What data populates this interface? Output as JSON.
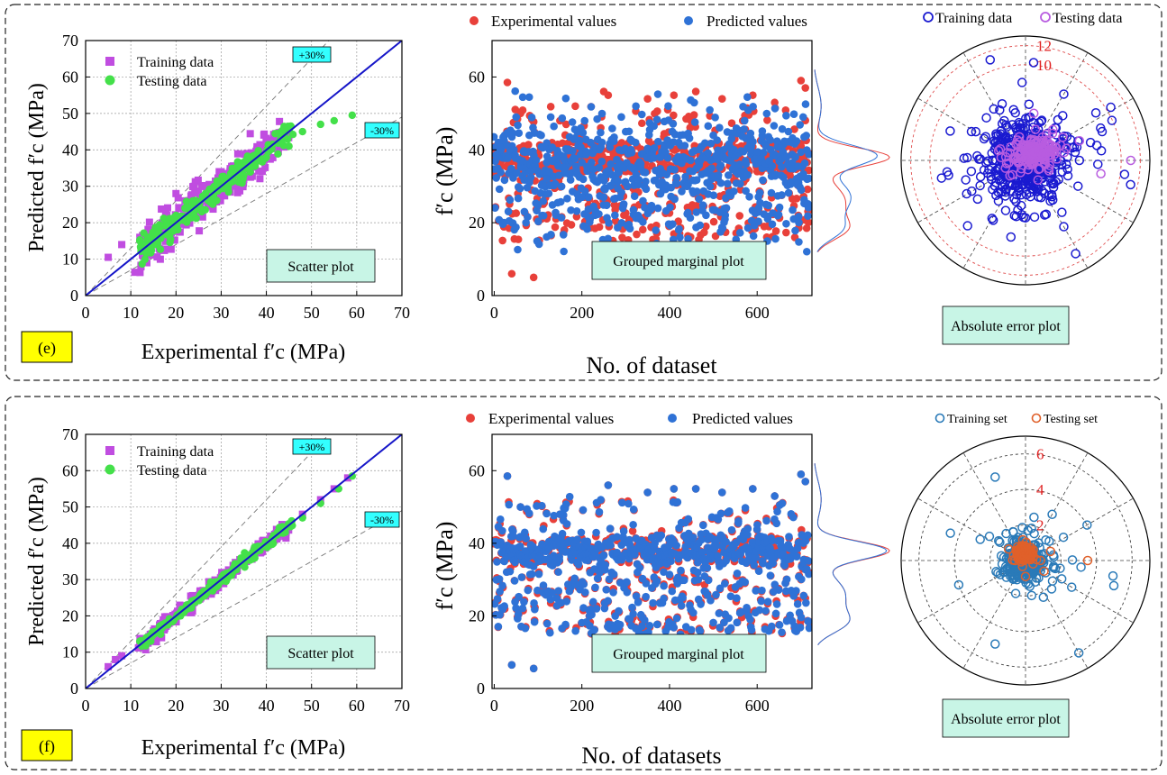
{
  "colors": {
    "training_square": "#c04de0",
    "testing_green": "#44e04a",
    "fit_line": "#1515c8",
    "experimental": "#e8403a",
    "predicted": "#2f72d6",
    "polar_train_e": "#1a1ad0",
    "polar_test_e": "#b85ce0",
    "polar_train_f": "#2a7ab8",
    "polar_test_f": "#e0602a",
    "box_fill": "#c8f5e6",
    "tag_fill": "#ffff00",
    "band_tag": "#33ffff"
  },
  "panels": [
    {
      "tag": "(e)",
      "scatter": {
        "xlabel": "Experimental f′c (MPa)",
        "ylabel": "Predicted f′c (MPa)",
        "legend": [
          "Training data",
          "Testing data"
        ],
        "band_upper": "+30%",
        "band_lower": "-30%",
        "box": "Scatter plot"
      },
      "marginal": {
        "legend": [
          "Experimental values",
          "Predicted values"
        ],
        "xlabel": "No. of dataset",
        "ylabel": "f′c (MPa)",
        "box": "Grouped marginal plot"
      },
      "polar": {
        "legend": [
          "Training data",
          "Testing data"
        ],
        "radial_ticks": [
          "12",
          "10"
        ],
        "box": "Absolute error plot"
      }
    },
    {
      "tag": "(f)",
      "scatter": {
        "xlabel": "Experimental f′c (MPa)",
        "ylabel": "Predicted f′c (MPa)",
        "legend": [
          "Training data",
          "Testing data"
        ],
        "band_upper": "+30%",
        "band_lower": "-30%",
        "box": "Scatter plot"
      },
      "marginal": {
        "legend": [
          "Experimental values",
          "Predicted values"
        ],
        "xlabel": "No. of datasets",
        "ylabel": "f′c (MPa)",
        "box": "Grouped marginal plot"
      },
      "polar": {
        "legend": [
          "Training set",
          "Testing set"
        ],
        "radial_ticks": [
          "6",
          "4",
          "2"
        ],
        "box": "Absolute error plot"
      }
    }
  ],
  "chart_data": [
    {
      "type": "scatter",
      "panel": "e",
      "name": "scatter_e",
      "xlabel": "Experimental f′c (MPa)",
      "ylabel": "Predicted f′c (MPa)",
      "xlim": [
        0,
        70
      ],
      "ylim": [
        0,
        70
      ],
      "xticks": [
        0,
        10,
        20,
        30,
        40,
        50,
        60,
        70
      ],
      "yticks": [
        0,
        10,
        20,
        30,
        40,
        50,
        60,
        70
      ],
      "grid": true,
      "legend_position": "top-left",
      "reference_lines": [
        "y = x",
        "y = 1.3x",
        "y = 0.7x"
      ],
      "series": [
        {
          "name": "Training data",
          "marker": "square",
          "x": [
            5,
            8,
            12,
            14,
            16,
            18,
            20,
            22,
            24,
            26,
            28,
            30,
            32,
            34,
            36,
            38,
            40,
            42,
            44
          ],
          "y": [
            10.5,
            14,
            16,
            15,
            18,
            22,
            28,
            26,
            30,
            30,
            27,
            34,
            33,
            32,
            37,
            39,
            42,
            44,
            45
          ]
        },
        {
          "name": "Testing data",
          "marker": "circle",
          "x": [
            12,
            14,
            16,
            18,
            20,
            22,
            24,
            26,
            28,
            30,
            32,
            35,
            38,
            40,
            45,
            48,
            52,
            55,
            59
          ],
          "y": [
            15,
            16,
            17,
            19,
            22,
            24,
            24,
            27,
            26,
            30,
            31,
            33,
            37,
            38,
            41,
            45,
            47,
            48,
            49.5
          ]
        }
      ]
    },
    {
      "type": "scatter",
      "panel": "e",
      "name": "marginal_e",
      "xlabel": "No. of dataset",
      "ylabel": "f′c (MPa)",
      "xlim": [
        -5,
        725
      ],
      "ylim": [
        0,
        70
      ],
      "xticks": [
        0,
        200,
        400,
        600
      ],
      "yticks": [
        0,
        20,
        40,
        60
      ],
      "legend_position": "top",
      "series": [
        {
          "name": "Experimental values",
          "x": [
            30,
            40,
            60,
            90,
            150,
            250,
            260,
            350,
            410,
            460,
            520,
            590,
            640,
            700,
            710
          ],
          "y": [
            58.5,
            6,
            50,
            5,
            48,
            56,
            55,
            54,
            55,
            56,
            54,
            55,
            53,
            59,
            57
          ]
        },
        {
          "name": "Predicted values",
          "x": [
            20,
            50,
            80,
            120,
            200,
            300,
            380,
            440,
            500,
            560,
            620,
            680,
            705
          ],
          "y": [
            20,
            49,
            44,
            32,
            27,
            45,
            38,
            30,
            44,
            36,
            25,
            42,
            49
          ]
        }
      ],
      "marginal_density": "kde of f′c, peaks near 35–40 MPa"
    },
    {
      "type": "scatter",
      "panel": "e",
      "name": "polar_e",
      "coordinate": "polar",
      "radial_ticks": [
        10,
        12
      ],
      "rmax": 13,
      "series": [
        {
          "name": "Training data",
          "points": [
            [
              0,
              3
            ],
            [
              30,
              5
            ],
            [
              60,
              8
            ],
            [
              100,
              4
            ],
            [
              150,
              6
            ],
            [
              200,
              5
            ],
            [
              240,
              7
            ],
            [
              270,
              6
            ],
            [
              300,
              8
            ],
            [
              330,
              4
            ]
          ]
        },
        {
          "name": "Testing data",
          "points": [
            [
              0,
              11
            ],
            [
              20,
              6
            ],
            [
              45,
              4
            ],
            [
              80,
              5
            ],
            [
              120,
              2
            ],
            [
              160,
              3
            ],
            [
              350,
              8
            ]
          ]
        }
      ]
    },
    {
      "type": "scatter",
      "panel": "f",
      "name": "scatter_f",
      "xlabel": "Experimental f′c (MPa)",
      "ylabel": "Predicted f′c (MPa)",
      "xlim": [
        0,
        70
      ],
      "ylim": [
        0,
        70
      ],
      "xticks": [
        0,
        10,
        20,
        30,
        40,
        50,
        60,
        70
      ],
      "yticks": [
        0,
        10,
        20,
        30,
        40,
        50,
        60,
        70
      ],
      "grid": true,
      "legend_position": "top-left",
      "reference_lines": [
        "y = x",
        "y = 1.3x",
        "y = 0.7x"
      ],
      "series": [
        {
          "name": "Training data",
          "marker": "square",
          "x": [
            5,
            8,
            12,
            14,
            17,
            20,
            23,
            26,
            29,
            32,
            35,
            38,
            41,
            44,
            48,
            52,
            55,
            58
          ],
          "y": [
            6,
            9,
            12,
            14,
            18,
            20,
            23,
            27,
            28,
            32,
            35,
            38,
            41,
            45,
            48,
            52,
            55,
            58
          ]
        },
        {
          "name": "Testing data",
          "marker": "circle",
          "x": [
            12,
            15,
            18,
            21,
            24,
            27,
            30,
            33,
            36,
            40,
            44,
            48,
            52,
            56,
            59
          ],
          "y": [
            13,
            15,
            18,
            20,
            24,
            27,
            30,
            33,
            36,
            40,
            44,
            47,
            51,
            55,
            58.5
          ]
        }
      ]
    },
    {
      "type": "scatter",
      "panel": "f",
      "name": "marginal_f",
      "xlabel": "No. of datasets",
      "ylabel": "f′c (MPa)",
      "xlim": [
        -5,
        725
      ],
      "ylim": [
        0,
        70
      ],
      "xticks": [
        0,
        200,
        400,
        600
      ],
      "yticks": [
        0,
        20,
        40,
        60
      ],
      "legend_position": "top",
      "series": [
        {
          "name": "Experimental values",
          "x": [
            30,
            40,
            60,
            90,
            150,
            260,
            350,
            410,
            460,
            520,
            590,
            640,
            700,
            710
          ],
          "y": [
            58.5,
            6.5,
            50,
            5.5,
            48,
            56,
            54,
            55,
            55,
            54,
            55,
            53,
            59,
            57
          ]
        },
        {
          "name": "Predicted values",
          "x": [
            30,
            40,
            60,
            90,
            150,
            260,
            350,
            410,
            460,
            520,
            590,
            640,
            700,
            710
          ],
          "y": [
            58.5,
            6.5,
            50,
            5.5,
            48,
            56,
            54,
            55,
            55,
            54,
            55,
            53,
            59,
            57
          ]
        }
      ],
      "marginal_density": "kde of f′c, peak near 38 MPa"
    },
    {
      "type": "scatter",
      "panel": "f",
      "name": "polar_f",
      "coordinate": "polar",
      "radial_ticks": [
        2,
        4,
        6
      ],
      "rmax": 7,
      "series": [
        {
          "name": "Training set",
          "points": [
            [
              350,
              5
            ],
            [
              300,
              6
            ],
            [
              250,
              5
            ],
            [
              200,
              4
            ],
            [
              160,
              4.5
            ],
            [
              110,
              5
            ],
            [
              60,
              3
            ],
            [
              30,
              4
            ],
            [
              330,
              3
            ],
            [
              280,
              2
            ]
          ]
        },
        {
          "name": "Testing set",
          "points": [
            [
              0,
              3.5
            ],
            [
              20,
              1.5
            ],
            [
              90,
              0.8
            ],
            [
              180,
              0.6
            ],
            [
              270,
              0.9
            ],
            [
              330,
              1.2
            ]
          ]
        }
      ]
    }
  ]
}
